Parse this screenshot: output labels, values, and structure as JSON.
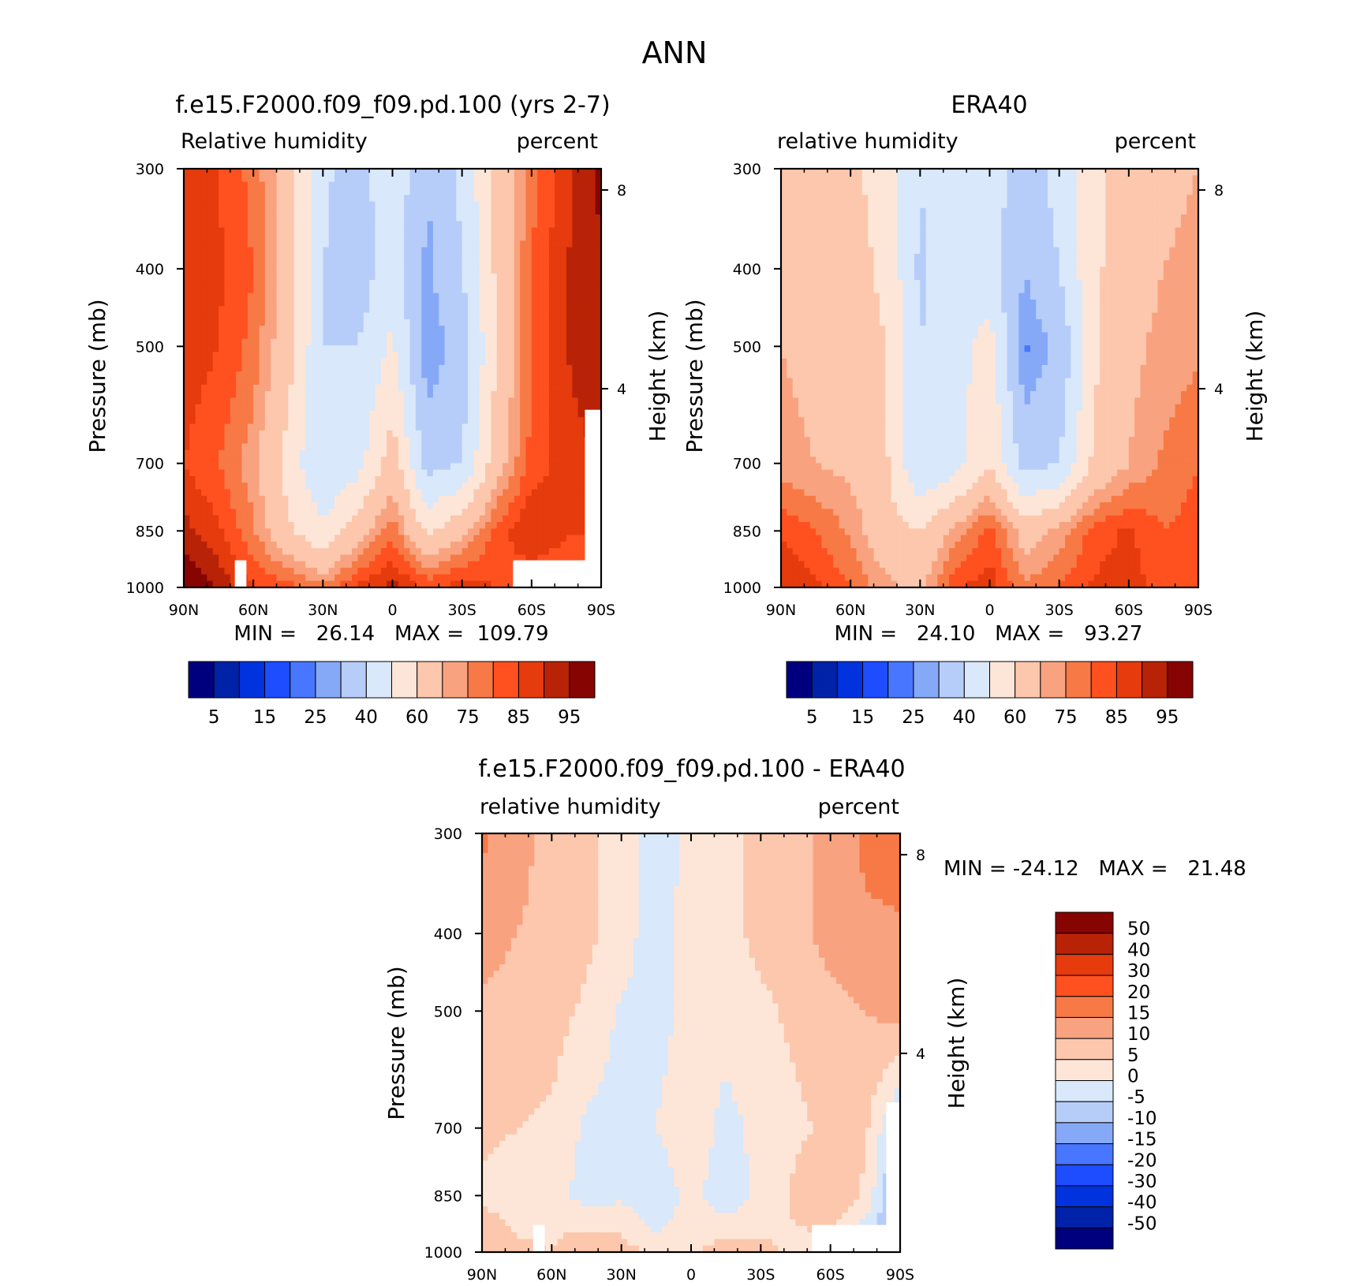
{
  "page_title": "ANN",
  "palettes": {
    "abs": [
      "#00007f",
      "#0022a8",
      "#0033dd",
      "#1d4dff",
      "#4976ff",
      "#86a9f7",
      "#b6cdf9",
      "#d9e8fa",
      "#fde6d8",
      "#fcc7ac",
      "#f9a27f",
      "#f77945",
      "#ff5020",
      "#e53b0d",
      "#b82307",
      "#860401"
    ],
    "diff": [
      "#00007f",
      "#0022a8",
      "#0033dd",
      "#1d4dff",
      "#4976ff",
      "#86a9f7",
      "#b6cdf9",
      "#d9e8fa",
      "#fde6d8",
      "#fcc7ac",
      "#f9a27f",
      "#f77945",
      "#ff5020",
      "#e53b0d",
      "#b82307",
      "#860401"
    ]
  },
  "chart_data": [
    {
      "type": "heatmap",
      "title": "f.e15.F2000.f09_f09.pd.100 (yrs 2-7)",
      "left_string": "Relative humidity",
      "right_string": "percent",
      "ylabel": "Pressure (mb)",
      "ylabel_right": "Height (km)",
      "x_ticks": [
        "90N",
        "60N",
        "30N",
        "0",
        "30S",
        "60S",
        "90S"
      ],
      "y_ticks": [
        "300",
        "400",
        "500",
        "700",
        "850",
        "1000"
      ],
      "y_ticks_right": [
        "8",
        "4"
      ],
      "min_max_text": "MIN =   26.14   MAX =  109.79",
      "colorbar_labels": [
        "5",
        "15",
        "25",
        "40",
        "60",
        "75",
        "85",
        "95"
      ],
      "x": [
        -90,
        -75,
        -60,
        -45,
        -30,
        -15,
        0,
        15,
        30,
        45,
        60,
        75,
        90
      ],
      "y": [
        300,
        400,
        500,
        700,
        850,
        1000
      ],
      "z": [
        [
          88,
          85,
          78,
          65,
          42,
          35,
          48,
          30,
          42,
          62,
          78,
          88,
          96
        ],
        [
          90,
          86,
          80,
          66,
          40,
          34,
          46,
          28,
          40,
          62,
          80,
          90,
          95
        ],
        [
          88,
          85,
          78,
          64,
          40,
          40,
          52,
          25,
          34,
          60,
          80,
          90,
          94
        ],
        [
          85,
          80,
          72,
          56,
          40,
          46,
          66,
          36,
          40,
          66,
          82,
          88,
          90
        ],
        [
          92,
          86,
          76,
          62,
          52,
          66,
          78,
          58,
          68,
          82,
          90,
          86,
          85
        ],
        [
          100,
          94,
          85,
          82,
          76,
          86,
          92,
          84,
          88,
          85,
          80,
          78,
          75
        ]
      ],
      "missing": [
        {
          "x": [
            52,
            90
          ],
          "y": [
            925,
            1000
          ]
        },
        {
          "x": [
            -68,
            -63
          ],
          "y": [
            925,
            1000
          ]
        },
        {
          "x": [
            83,
            90
          ],
          "y": [
            600,
            1000
          ]
        }
      ]
    },
    {
      "type": "heatmap",
      "title": "ERA40",
      "left_string": "relative humidity",
      "right_string": "percent",
      "ylabel": "Pressure (mb)",
      "ylabel_right": "Height (km)",
      "x_ticks": [
        "90N",
        "60N",
        "30N",
        "0",
        "30S",
        "60S",
        "90S"
      ],
      "y_ticks": [
        "300",
        "400",
        "500",
        "700",
        "850",
        "1000"
      ],
      "y_ticks_right": [
        "8",
        "4"
      ],
      "min_max_text": "MIN =   24.10   MAX =   93.27",
      "colorbar_labels": [
        "5",
        "15",
        "25",
        "40",
        "60",
        "75",
        "85",
        "95"
      ],
      "x": [
        -90,
        -75,
        -60,
        -45,
        -30,
        -15,
        0,
        15,
        30,
        45,
        60,
        75,
        90
      ],
      "y": [
        300,
        400,
        500,
        700,
        850,
        1000
      ],
      "z": [
        [
          66,
          64,
          62,
          56,
          40,
          48,
          46,
          34,
          44,
          58,
          64,
          68,
          70
        ],
        [
          68,
          66,
          64,
          58,
          38,
          46,
          44,
          30,
          40,
          58,
          66,
          70,
          72
        ],
        [
          70,
          68,
          66,
          60,
          40,
          46,
          54,
          24,
          32,
          58,
          68,
          72,
          74
        ],
        [
          72,
          70,
          68,
          62,
          40,
          46,
          60,
          36,
          40,
          62,
          70,
          76,
          80
        ],
        [
          84,
          80,
          74,
          64,
          60,
          72,
          82,
          66,
          72,
          82,
          86,
          80,
          82
        ],
        [
          90,
          86,
          80,
          72,
          68,
          84,
          88,
          76,
          80,
          86,
          88,
          82,
          85
        ]
      ],
      "missing": []
    },
    {
      "type": "heatmap",
      "title": "f.e15.F2000.f09_f09.pd.100 - ERA40",
      "left_string": "relative humidity",
      "right_string": "percent",
      "ylabel": "Pressure (mb)",
      "ylabel_right": "Height (km)",
      "x_ticks": [
        "90N",
        "60N",
        "30N",
        "0",
        "30S",
        "60S",
        "90S"
      ],
      "y_ticks": [
        "300",
        "400",
        "500",
        "700",
        "850",
        "1000"
      ],
      "y_ticks_right": [
        "8",
        "4"
      ],
      "min_max_text": "MIN = -24.12   MAX =   21.48",
      "colorbar_labels": [
        "50",
        "40",
        "30",
        "20",
        "15",
        "10",
        "5",
        "0",
        "-5",
        "-10",
        "-15",
        "-20",
        "-30",
        "-40",
        "-50"
      ],
      "x": [
        -90,
        -75,
        -60,
        -45,
        -30,
        -15,
        0,
        15,
        30,
        45,
        60,
        75,
        90
      ],
      "y": [
        300,
        400,
        500,
        700,
        850,
        1000
      ],
      "z": [
        [
          16,
          12,
          8,
          6,
          3,
          -3,
          2,
          4,
          6,
          8,
          12,
          16,
          18
        ],
        [
          12,
          10,
          8,
          6,
          3,
          -4,
          3,
          4,
          6,
          8,
          12,
          14,
          14
        ],
        [
          9,
          8,
          7,
          4,
          -1,
          -2,
          2,
          2,
          4,
          6,
          8,
          10,
          12
        ],
        [
          6,
          5,
          4,
          -1,
          -2,
          0,
          4,
          -2,
          2,
          4,
          6,
          6,
          -8
        ],
        [
          4,
          3,
          2,
          -2,
          -1,
          -4,
          2,
          -4,
          2,
          6,
          10,
          4,
          -14
        ],
        [
          10,
          6,
          5,
          10,
          8,
          2,
          4,
          8,
          6,
          4,
          2,
          -6,
          -12
        ]
      ],
      "missing": [
        {
          "x": [
            52,
            90
          ],
          "y": [
            925,
            1000
          ]
        },
        {
          "x": [
            -68,
            -63
          ],
          "y": [
            925,
            1000
          ]
        },
        {
          "x": [
            84,
            90
          ],
          "y": [
            650,
            1000
          ]
        }
      ]
    }
  ]
}
